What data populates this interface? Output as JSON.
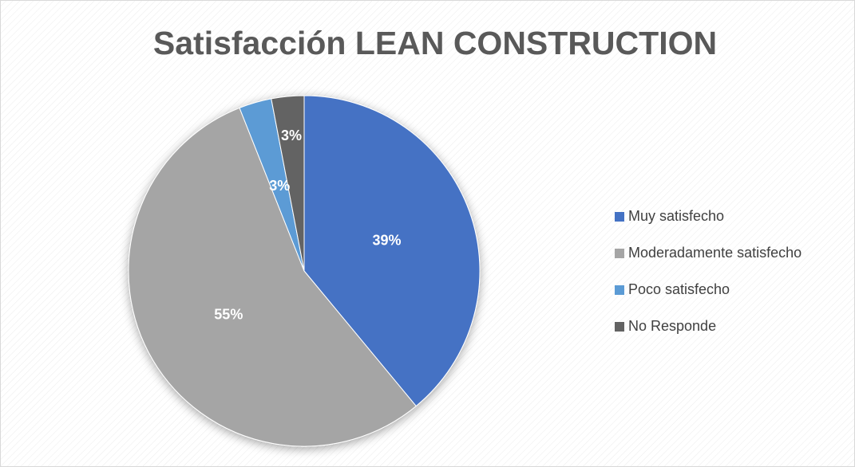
{
  "chart_data": {
    "type": "pie",
    "title": "Satisfacción LEAN CONSTRUCTION",
    "categories": [
      "Muy satisfecho",
      "Moderadamente satisfecho",
      "Poco satisfecho",
      "No Responde"
    ],
    "values": [
      39,
      55,
      3,
      3
    ],
    "value_labels": [
      "39%",
      "55%",
      "3%",
      "3%"
    ],
    "colors": [
      "#4472c4",
      "#a5a5a5",
      "#5b9bd5",
      "#636363"
    ],
    "legend": "right"
  }
}
